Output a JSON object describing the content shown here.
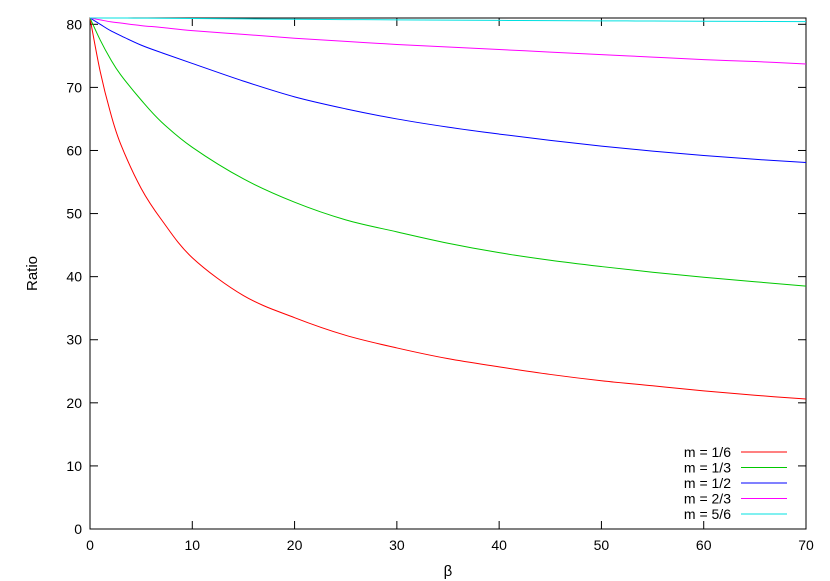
{
  "chart_data": {
    "type": "line",
    "title": "",
    "xlabel": "β",
    "ylabel": "Ratio",
    "xlim": [
      0,
      70
    ],
    "ylim": [
      0,
      81
    ],
    "xticks": [
      0,
      10,
      20,
      30,
      40,
      50,
      60,
      70
    ],
    "yticks": [
      0,
      10,
      20,
      30,
      40,
      50,
      60,
      70,
      80
    ],
    "grid": false,
    "legend_position": "bottom-right",
    "x": [
      0,
      1,
      2,
      3,
      5,
      7,
      10,
      15,
      20,
      25,
      30,
      35,
      40,
      45,
      50,
      55,
      60,
      65,
      70
    ],
    "series": [
      {
        "name": "m = 1/6",
        "color": "#ff0000",
        "values": [
          81,
          72.5,
          66,
          61,
          54,
          49,
          43,
          37,
          33.5,
          30.7,
          28.7,
          27,
          25.7,
          24.5,
          23.5,
          22.7,
          21.9,
          21.2,
          20.6
        ]
      },
      {
        "name": "m = 1/3",
        "color": "#00c800",
        "values": [
          81,
          77.5,
          74.5,
          72,
          68,
          64.5,
          60.5,
          55.5,
          51.8,
          49,
          47.1,
          45.3,
          43.8,
          42.6,
          41.6,
          40.7,
          39.9,
          39.2,
          38.5
        ]
      },
      {
        "name": "m = 1/2",
        "color": "#0000ff",
        "values": [
          81,
          80,
          79,
          78.2,
          76.7,
          75.5,
          73.8,
          71,
          68.5,
          66.6,
          65,
          63.7,
          62.6,
          61.6,
          60.7,
          59.9,
          59.2,
          58.6,
          58.1
        ]
      },
      {
        "name": "m = 2/3",
        "color": "#ff00ff",
        "values": [
          81,
          80.7,
          80.4,
          80.2,
          79.8,
          79.5,
          79,
          78.4,
          77.8,
          77.3,
          76.8,
          76.4,
          76,
          75.6,
          75.2,
          74.8,
          74.4,
          74.1,
          73.7
        ]
      },
      {
        "name": "m = 5/6",
        "color": "#00e0e0",
        "values": [
          81,
          81,
          81,
          81,
          80.98,
          80.96,
          80.92,
          80.86,
          80.8,
          80.75,
          80.7,
          80.66,
          80.62,
          80.58,
          80.55,
          80.52,
          80.49,
          80.46,
          80.43
        ]
      }
    ]
  }
}
